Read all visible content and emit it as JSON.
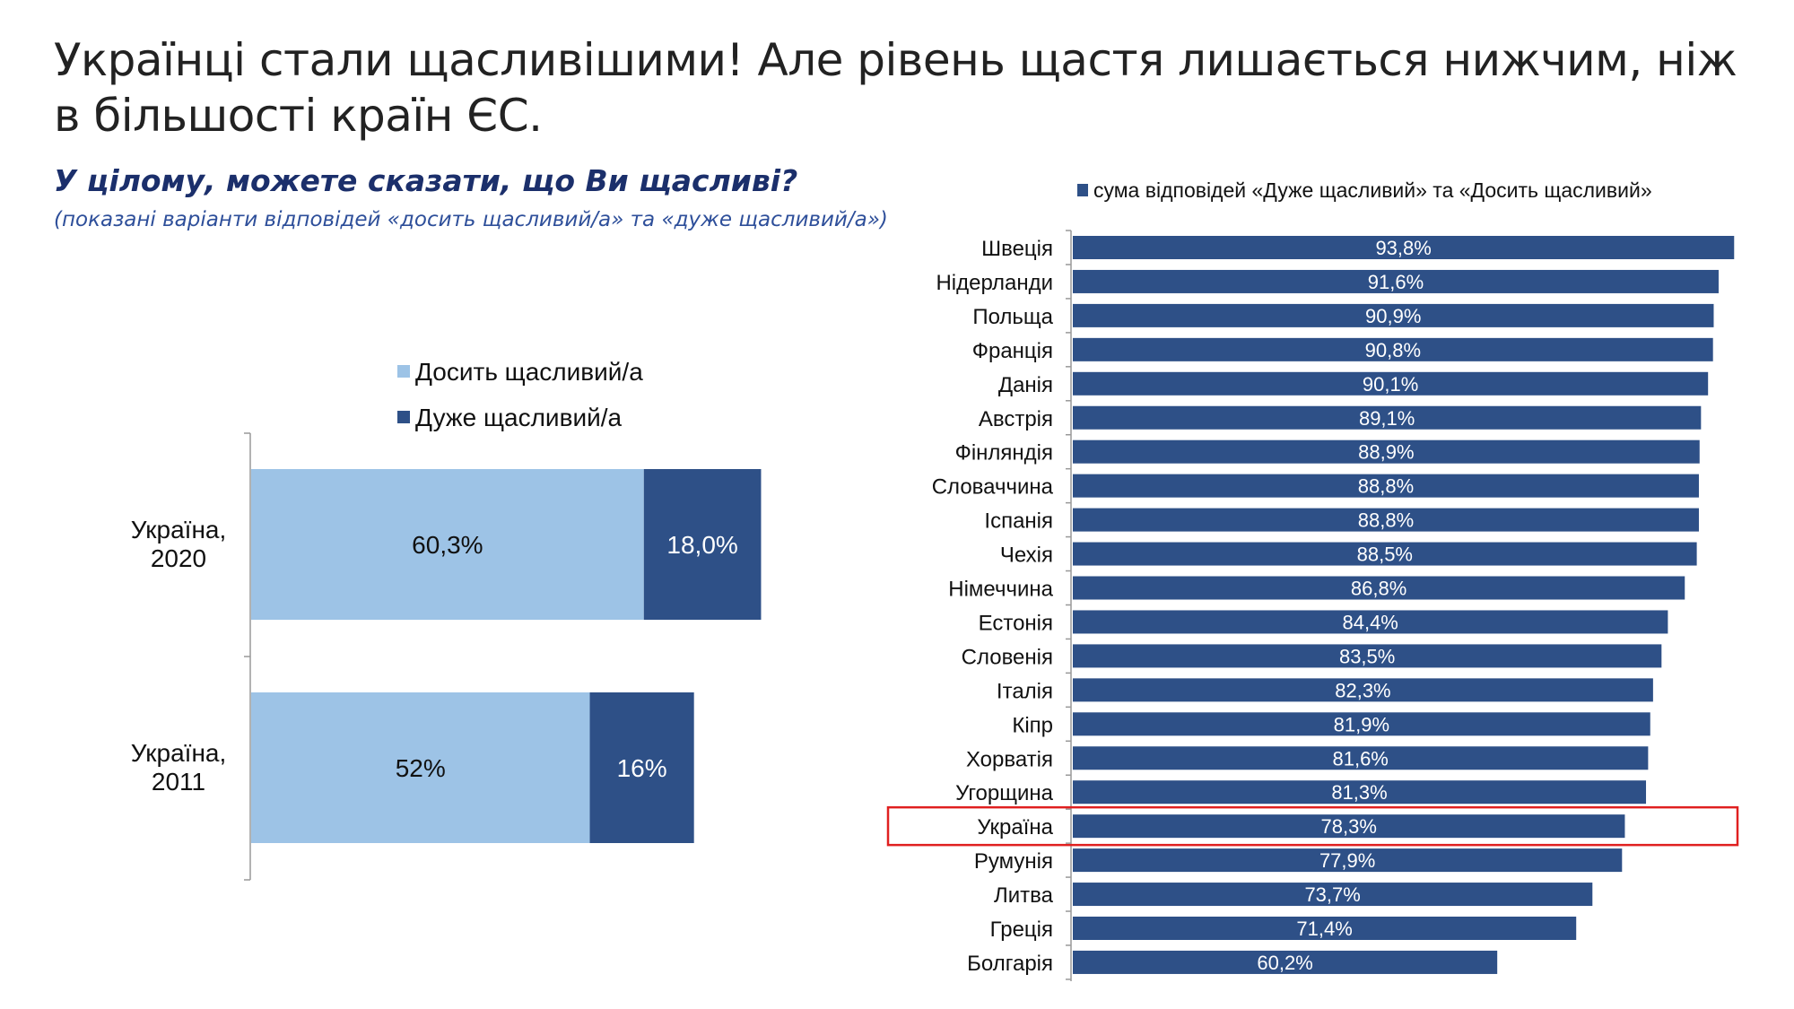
{
  "title": "Українці стали щасливішими! Але рівень щастя лишається нижчим, ніж в більшості країн ЄС.",
  "question": "У цілому, можете сказати, що Ви щасливі?",
  "note": "(показані варіанти відповідей «досить щасливий/а» та «дуже щасливий/а»)",
  "colors": {
    "dark": "#2e5087",
    "light": "#9dc3e6",
    "highlight": "#e02020"
  },
  "chart_data": [
    {
      "type": "bar",
      "orientation": "horizontal",
      "stacked": true,
      "categories": [
        [
          "Україна,",
          "2020"
        ],
        [
          "Україна,",
          "2011"
        ]
      ],
      "series": [
        {
          "name": "Досить щасливий/а",
          "values": [
            60.3,
            52
          ],
          "labels": [
            "60,3%",
            "52%"
          ],
          "color": "#9dc3e6"
        },
        {
          "name": "Дуже щасливий/а",
          "values": [
            18.0,
            16
          ],
          "labels": [
            "18,0%",
            "16%"
          ],
          "color": "#2e5087"
        }
      ],
      "legend": "top",
      "grid": false
    },
    {
      "type": "bar",
      "orientation": "horizontal",
      "categories": [
        "Швеція",
        "Нідерланди",
        "Польща",
        "Франція",
        "Данія",
        "Австрія",
        "Фінляндія",
        "Словаччина",
        "Іспанія",
        "Чехія",
        "Німеччина",
        "Естонія",
        "Словенія",
        "Італія",
        "Кіпр",
        "Хорватія",
        "Угорщина",
        "Україна",
        "Румунія",
        "Литва",
        "Греція",
        "Болгарія"
      ],
      "series": [
        {
          "name": "сума відповідей «Дуже щасливий» та «Досить щасливий»",
          "values": [
            93.8,
            91.6,
            90.9,
            90.8,
            90.1,
            89.1,
            88.9,
            88.8,
            88.8,
            88.5,
            86.8,
            84.4,
            83.5,
            82.3,
            81.9,
            81.6,
            81.3,
            78.3,
            77.9,
            73.7,
            71.4,
            60.2
          ],
          "labels": [
            "93,8%",
            "91,6%",
            "90,9%",
            "90,8%",
            "90,1%",
            "89,1%",
            "88,9%",
            "88,8%",
            "88,8%",
            "88,5%",
            "86,8%",
            "84,4%",
            "83,5%",
            "82,3%",
            "81,9%",
            "81,6%",
            "81,3%",
            "78,3%",
            "77,9%",
            "73,7%",
            "71,4%",
            "60,2%"
          ],
          "color": "#2e5087"
        }
      ],
      "highlighted_category": "Україна",
      "legend": "top",
      "grid": false
    }
  ]
}
